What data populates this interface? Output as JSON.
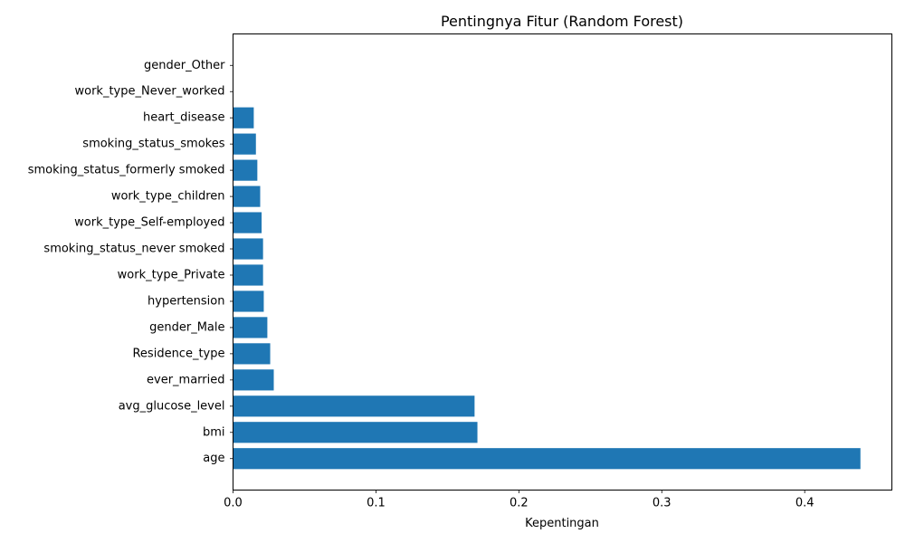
{
  "chart_data": {
    "type": "bar",
    "orientation": "horizontal",
    "title": "Pentingnya Fitur (Random Forest)",
    "xlabel": "Kepentingan",
    "ylabel": "",
    "xlim": [
      0,
      0.461
    ],
    "xticks": [
      "0.0",
      "0.1",
      "0.2",
      "0.3",
      "0.4"
    ],
    "grid": false,
    "bar_color": "#1f77b4",
    "categories": [
      "age",
      "bmi",
      "avg_glucose_level",
      "ever_married",
      "Residence_type",
      "gender_Male",
      "hypertension",
      "work_type_Private",
      "smoking_status_never smoked",
      "work_type_Self-employed",
      "work_type_children",
      "smoking_status_formerly smoked",
      "smoking_status_smokes",
      "heart_disease",
      "work_type_Never_worked",
      "gender_Other"
    ],
    "values": [
      0.439,
      0.171,
      0.169,
      0.0285,
      0.026,
      0.024,
      0.0215,
      0.021,
      0.021,
      0.02,
      0.019,
      0.017,
      0.016,
      0.0145,
      0.0002,
      0.0
    ]
  }
}
